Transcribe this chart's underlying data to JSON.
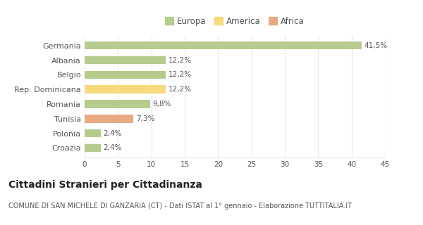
{
  "categories": [
    "Croazia",
    "Polonia",
    "Tunisia",
    "Romania",
    "Rep. Dominicana",
    "Belgio",
    "Albania",
    "Germania"
  ],
  "values": [
    2.4,
    2.4,
    7.3,
    9.8,
    12.2,
    12.2,
    12.2,
    41.5
  ],
  "labels": [
    "2,4%",
    "2,4%",
    "7,3%",
    "9,8%",
    "12,2%",
    "12,2%",
    "12,2%",
    "41,5%"
  ],
  "colors": [
    "#b5cc8e",
    "#b5cc8e",
    "#e8aa82",
    "#b5cc8e",
    "#f7d97e",
    "#b5cc8e",
    "#b5cc8e",
    "#b5cc8e"
  ],
  "legend_items": [
    {
      "label": "Europa",
      "color": "#b5cc8e"
    },
    {
      "label": "America",
      "color": "#f7d97e"
    },
    {
      "label": "Africa",
      "color": "#e8aa82"
    }
  ],
  "xlim": [
    0,
    45
  ],
  "xticks": [
    0,
    5,
    10,
    15,
    20,
    25,
    30,
    35,
    40,
    45
  ],
  "title": "Cittadini Stranieri per Cittadinanza",
  "subtitle": "COMUNE DI SAN MICHELE DI GANZARIA (CT) - Dati ISTAT al 1° gennaio - Elaborazione TUTTITALIA.IT",
  "bg_color": "#ffffff",
  "plot_bg_color": "#ffffff",
  "grid_color": "#e8e8e8",
  "bar_height": 0.55,
  "label_fontsize": 7.5,
  "title_fontsize": 10,
  "subtitle_fontsize": 7,
  "ytick_fontsize": 8,
  "xtick_fontsize": 7.5,
  "legend_fontsize": 8.5,
  "text_color": "#555555",
  "title_color": "#222222",
  "label_color": "#555555"
}
